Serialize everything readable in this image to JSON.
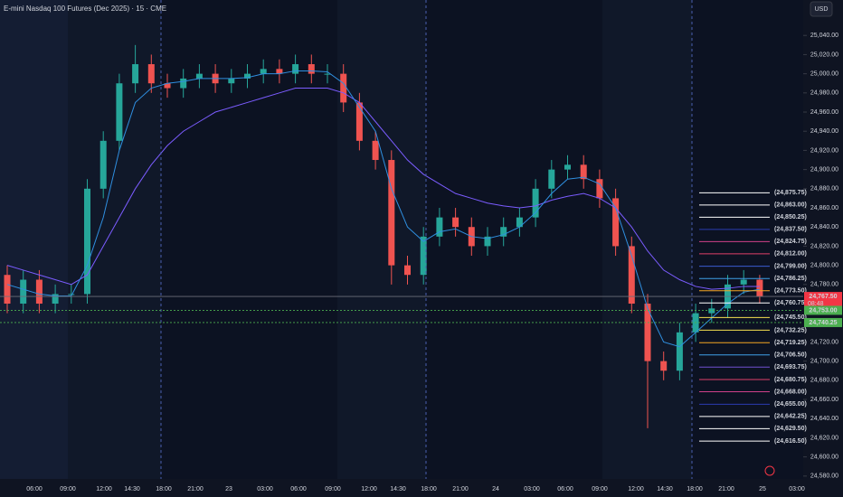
{
  "chart_data": {
    "type": "candlestick",
    "title": "E-mini Nasdaq 100 Futures (Dec 2025) · 15 · CME",
    "currency": "USD",
    "up_color": "#26a69a",
    "down_color": "#ef5350",
    "open": [
      24790,
      24760,
      24785,
      24760,
      24770,
      24770,
      24880,
      24930,
      24990,
      25010,
      24990,
      24985,
      24995,
      25000,
      24990,
      24995,
      25000,
      25005,
      25000,
      25010,
      25000,
      25000,
      24970,
      24930,
      24910,
      24800,
      24790,
      24830,
      24850,
      24840,
      24820,
      24830,
      24840,
      24850,
      24880,
      24900,
      24905,
      24890,
      24870,
      24820,
      24760,
      24700,
      24690,
      24730,
      24750,
      24755,
      24780,
      24785
    ],
    "high": [
      24800,
      24795,
      24795,
      24780,
      24780,
      24890,
      24940,
      25000,
      25030,
      25020,
      25000,
      25005,
      25010,
      25010,
      25005,
      25010,
      25015,
      25015,
      25020,
      25020,
      25010,
      25010,
      24980,
      24940,
      24920,
      24810,
      24840,
      24860,
      24860,
      24850,
      24840,
      24850,
      24860,
      24890,
      24910,
      24915,
      24915,
      24900,
      24880,
      24830,
      24770,
      24710,
      24740,
      24760,
      24765,
      24790,
      24795,
      24790
    ],
    "low": [
      24750,
      24750,
      24750,
      24750,
      24760,
      24760,
      24870,
      24920,
      24980,
      24980,
      24975,
      24975,
      24985,
      24980,
      24980,
      24985,
      24990,
      24990,
      24990,
      24990,
      24990,
      24960,
      24920,
      24900,
      24780,
      24780,
      24780,
      24820,
      24830,
      24810,
      24810,
      24820,
      24830,
      24840,
      24870,
      24890,
      24880,
      24860,
      24810,
      24750,
      24630,
      24680,
      24680,
      24720,
      24740,
      24745,
      24770,
      24760
    ],
    "close": [
      24760,
      24785,
      24760,
      24770,
      24770,
      24880,
      24930,
      24990,
      25010,
      24990,
      24985,
      24995,
      25000,
      24990,
      24995,
      25000,
      25005,
      25000,
      25010,
      25000,
      25000,
      24970,
      24930,
      24910,
      24800,
      24790,
      24830,
      24850,
      24840,
      24820,
      24830,
      24840,
      24850,
      24880,
      24900,
      24905,
      24890,
      24870,
      24820,
      24760,
      24700,
      24690,
      24730,
      24750,
      24755,
      24780,
      24785,
      24767.5
    ],
    "series": [
      {
        "color": "#7b5cff",
        "values": [
          24800,
          24795,
          24790,
          24785,
          24780,
          24790,
          24820,
          24850,
          24880,
          24905,
          24925,
          24940,
          24950,
          24960,
          24965,
          24970,
          24975,
          24980,
          24985,
          24985,
          24985,
          24980,
          24970,
          24950,
          24930,
          24910,
          24895,
          24885,
          24875,
          24870,
          24865,
          24862,
          24860,
          24862,
          24868,
          24872,
          24875,
          24870,
          24860,
          24840,
          24815,
          24795,
          24785,
          24778,
          24775,
          24776,
          24778,
          24778
        ]
      },
      {
        "color": "#2f8fe0",
        "values": [
          24780,
          24775,
          24770,
          24768,
          24768,
          24800,
          24850,
          24920,
          24970,
          24985,
          24990,
          24992,
          24995,
          24995,
          24995,
          24996,
          25000,
          25000,
          25003,
          25003,
          25002,
          24990,
          24965,
          24940,
          24880,
          24840,
          24825,
          24835,
          24838,
          24830,
          24828,
          24832,
          24840,
          24855,
          24875,
          24890,
          24892,
          24885,
          24860,
          24810,
          24755,
          24720,
          24715,
          24730,
          24745,
          24760,
          24772,
          24775
        ]
      }
    ],
    "time_labels": [
      "06:00",
      "09:00",
      "12:00",
      "14:30",
      "18:00",
      "21:00",
      "23",
      "03:00",
      "06:00",
      "09:00",
      "12:00",
      "14:30",
      "18:00",
      "21:00",
      "24",
      "03:00",
      "06:00",
      "09:00",
      "12:00",
      "14:30",
      "18:00",
      "21:00",
      "25",
      "03:00"
    ],
    "ylim": [
      24577,
      25077
    ],
    "yticks": [
      {
        "value": 25040,
        "label": "25,040.00"
      },
      {
        "value": 25020,
        "label": "25,020.00"
      },
      {
        "value": 25000,
        "label": "25,000.00"
      },
      {
        "value": 24980,
        "label": "24,980.00"
      },
      {
        "value": 24960,
        "label": "24,960.00"
      },
      {
        "value": 24940,
        "label": "24,940.00"
      },
      {
        "value": 24920,
        "label": "24,920.00"
      },
      {
        "value": 24900,
        "label": "24,900.00"
      },
      {
        "value": 24880,
        "label": "24,880.00"
      },
      {
        "value": 24860,
        "label": "24,860.00"
      },
      {
        "value": 24840,
        "label": "24,840.00"
      },
      {
        "value": 24820,
        "label": "24,820.00"
      },
      {
        "value": 24800,
        "label": "24,800.00"
      },
      {
        "value": 24780,
        "label": "24,780.00"
      },
      {
        "value": 24720,
        "label": "24,720.00"
      },
      {
        "value": 24700,
        "label": "24,700.00"
      },
      {
        "value": 24680,
        "label": "24,680.00"
      },
      {
        "value": 24660,
        "label": "24,660.00"
      },
      {
        "value": 24640,
        "label": "24,640.00"
      },
      {
        "value": 24620,
        "label": "24,620.00"
      },
      {
        "value": 24600,
        "label": "24,600.00"
      },
      {
        "value": 24580,
        "label": "24,580.00"
      }
    ],
    "levels": [
      {
        "value": 24875.75,
        "label": "(24,875.75)",
        "color": "#ffffff"
      },
      {
        "value": 24863,
        "label": "(24,863.00)",
        "color": "#ffffff"
      },
      {
        "value": 24850.25,
        "label": "(24,850.25)",
        "color": "#ffffff"
      },
      {
        "value": 24837.5,
        "label": "(24,837.50)",
        "color": "#2a3cb0"
      },
      {
        "value": 24824.75,
        "label": "(24,824.75)",
        "color": "#d0408a"
      },
      {
        "value": 24812,
        "label": "(24,812.00)",
        "color": "#e0406a"
      },
      {
        "value": 24799,
        "label": "(24,799.00)",
        "color": "#3a5cd0"
      },
      {
        "value": 24786.25,
        "label": "(24,786.25)",
        "color": "#3fa0e8"
      },
      {
        "value": 24773.5,
        "label": "(24,773.50)",
        "color": "#f5a623"
      },
      {
        "value": 24760.75,
        "label": "(24,760.75)",
        "color": "#ffffff"
      },
      {
        "value": 24745.5,
        "label": "(24,745.50)",
        "color": "#f5e050"
      },
      {
        "value": 24732.25,
        "label": "(24,732.25)",
        "color": "#f5e050"
      },
      {
        "value": 24719.25,
        "label": "(24,719.25)",
        "color": "#f5a623"
      },
      {
        "value": 24706.5,
        "label": "(24,706.50)",
        "color": "#3fa0e8"
      },
      {
        "value": 24693.75,
        "label": "(24,693.75)",
        "color": "#7050d0"
      },
      {
        "value": 24680.75,
        "label": "(24,680.75)",
        "color": "#e0406a"
      },
      {
        "value": 24668,
        "label": "(24,668.00)",
        "color": "#d0408a"
      },
      {
        "value": 24655,
        "label": "(24,655.00)",
        "color": "#2a3cb0"
      },
      {
        "value": 24642.25,
        "label": "(24,642.25)",
        "color": "#ffffff"
      },
      {
        "value": 24629.5,
        "label": "(24,629.50)",
        "color": "#ffffff"
      },
      {
        "value": 24616.5,
        "label": "(24,616.50)",
        "color": "#ffffff"
      }
    ],
    "price_tags": [
      {
        "value": 24767.5,
        "label": "24,767.50",
        "sub": "08:48",
        "color": "#f23645"
      },
      {
        "value": 24753,
        "label": "24,753.00",
        "color": "#4caf50"
      },
      {
        "value": 24740.25,
        "label": "24,740.25",
        "color": "#4caf50"
      }
    ]
  }
}
